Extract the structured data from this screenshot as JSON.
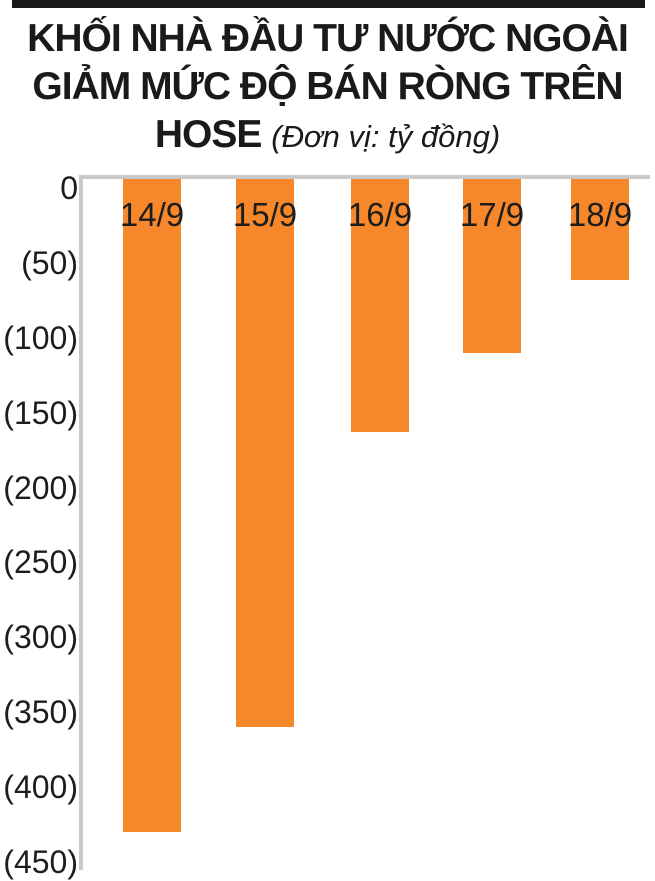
{
  "title": {
    "line1": "KHỐI NHÀ ĐẦU TƯ NƯỚC NGOÀI",
    "line2": "GIẢM MỨC ĐỘ BÁN RÒNG TRÊN",
    "line3_bold": "HOSE",
    "line3_note": "(Đơn vị: tỷ đồng)"
  },
  "chart_data": {
    "type": "bar",
    "title": "KHỐI NHÀ ĐẦU TƯ NƯỚC NGOÀI GIẢM MỨC ĐỘ BÁN RÒNG TRÊN HOSE",
    "unit_label": "(Đơn vị: tỷ đồng)",
    "unit": "tỷ đồng",
    "categories": [
      "14/9",
      "15/9",
      "16/9",
      "17/9",
      "18/9"
    ],
    "values": [
      -430,
      -360,
      -163,
      -110,
      -61
    ],
    "category_label_position": "inside-bar-top",
    "ylim": [
      -450,
      0
    ],
    "yticks": [
      "0",
      "(50)",
      "(100)",
      "(150)",
      "(200)",
      "(250)",
      "(300)",
      "(350)",
      "(400)",
      "(450)"
    ],
    "ytick_values": [
      0,
      -50,
      -100,
      -150,
      -200,
      -250,
      -300,
      -350,
      -400,
      -450
    ],
    "grid": false,
    "legend": "none",
    "bar_color": "#f6882b",
    "axis_color": "#c9c9c9",
    "text_color": "#1d1d1b"
  }
}
